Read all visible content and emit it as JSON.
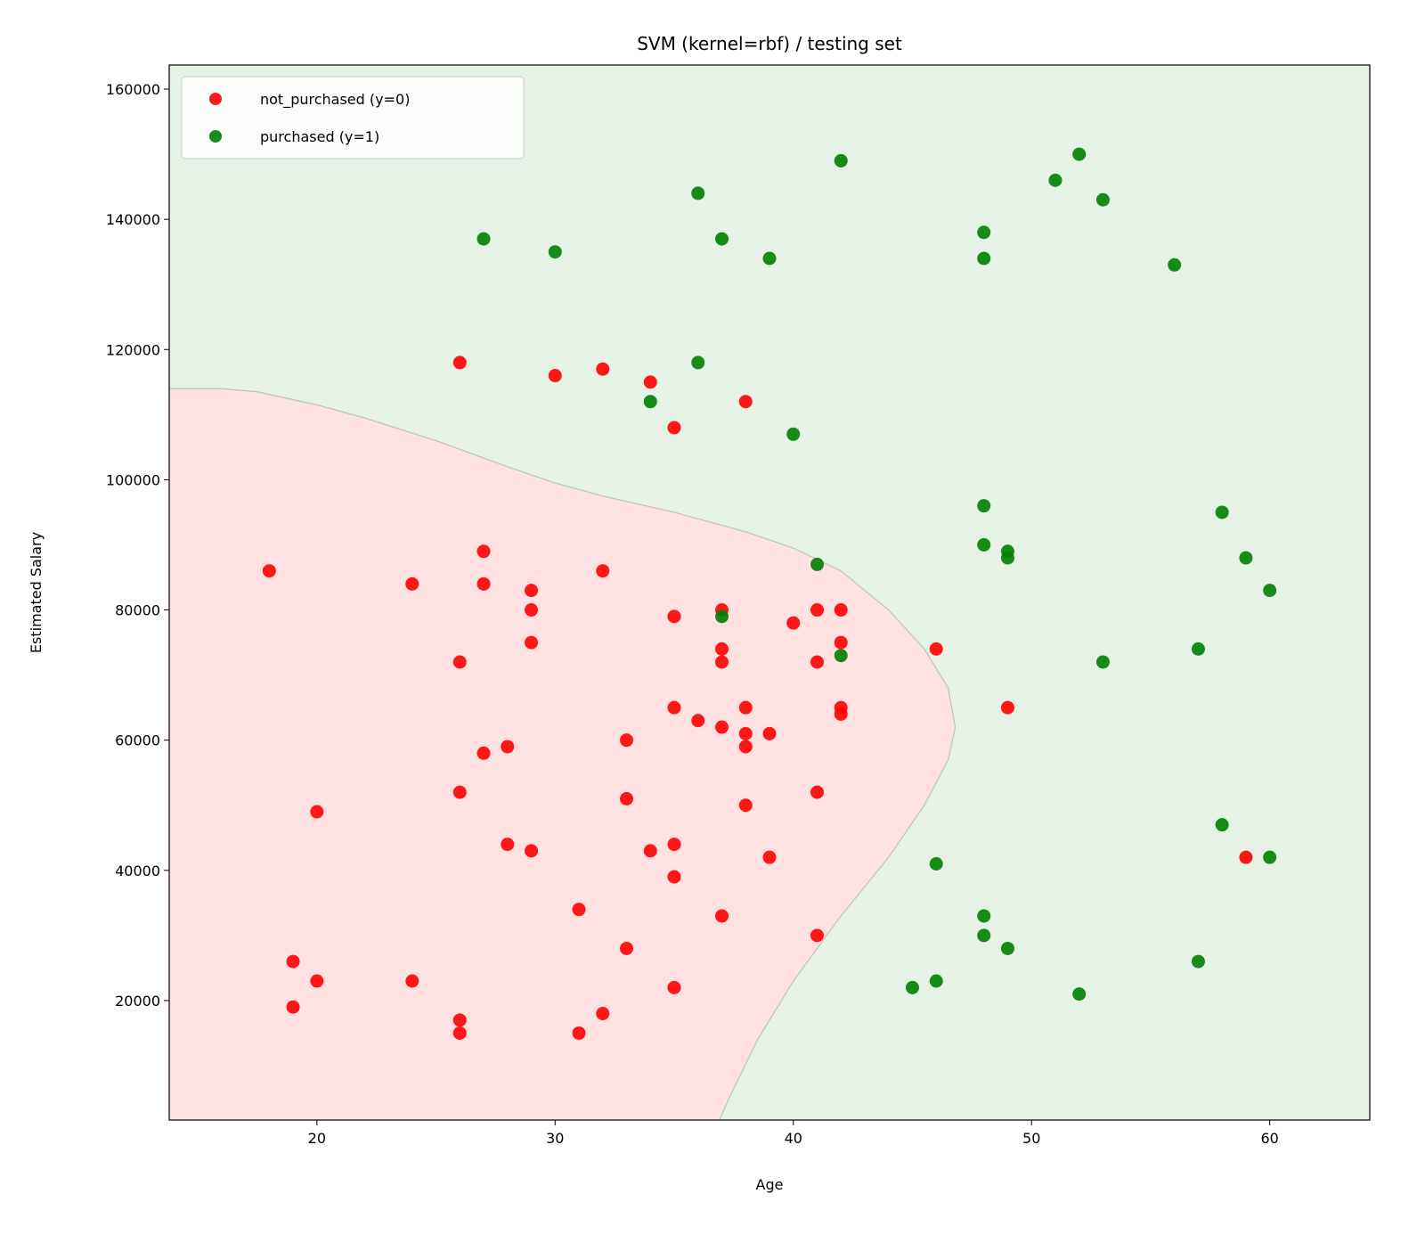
{
  "chart_data": {
    "type": "scatter",
    "title": "SVM (kernel=rbf) / testing set",
    "xlabel": "Age",
    "ylabel": "Estimated Salary",
    "xlim": [
      13.8,
      64.2
    ],
    "ylim": [
      1650,
      163700
    ],
    "xticks": [
      20,
      30,
      40,
      50,
      60
    ],
    "yticks": [
      20000,
      40000,
      60000,
      80000,
      100000,
      120000,
      140000,
      160000
    ],
    "grid": false,
    "legend_placement": "upper-left",
    "colors": {
      "class0": "#ff0000",
      "class1": "#008000",
      "region0": "#ffe1e1",
      "region1": "#e5f2e5"
    },
    "decision_boundary": [
      [
        13.8,
        114000
      ],
      [
        16,
        114000
      ],
      [
        17.5,
        113500
      ],
      [
        20,
        111500
      ],
      [
        22,
        109500
      ],
      [
        25,
        106000
      ],
      [
        28,
        102000
      ],
      [
        30,
        99500
      ],
      [
        32,
        97500
      ],
      [
        35,
        95000
      ],
      [
        38,
        92000
      ],
      [
        40,
        89500
      ],
      [
        42,
        86000
      ],
      [
        44,
        80000
      ],
      [
        45.5,
        74000
      ],
      [
        46.5,
        68000
      ],
      [
        46.8,
        62000
      ],
      [
        46.5,
        57000
      ],
      [
        45.5,
        50000
      ],
      [
        44,
        42000
      ],
      [
        42,
        33000
      ],
      [
        40,
        23000
      ],
      [
        38.5,
        14000
      ],
      [
        37.3,
        5000
      ],
      [
        36.9,
        1650
      ]
    ],
    "series": [
      {
        "name": "not_purchased (y=0)",
        "color": "#ff0000",
        "points": [
          [
            18,
            86000
          ],
          [
            19,
            26000
          ],
          [
            19,
            19000
          ],
          [
            20,
            49000
          ],
          [
            20,
            23000
          ],
          [
            24,
            84000
          ],
          [
            24,
            23000
          ],
          [
            26,
            118000
          ],
          [
            26,
            72000
          ],
          [
            26,
            52000
          ],
          [
            26,
            17000
          ],
          [
            26,
            15000
          ],
          [
            27,
            89000
          ],
          [
            27,
            84000
          ],
          [
            27,
            58000
          ],
          [
            28,
            59000
          ],
          [
            28,
            44000
          ],
          [
            29,
            83000
          ],
          [
            29,
            80000
          ],
          [
            29,
            75000
          ],
          [
            29,
            43000
          ],
          [
            30,
            116000
          ],
          [
            31,
            34000
          ],
          [
            31,
            15000
          ],
          [
            32,
            117000
          ],
          [
            32,
            86000
          ],
          [
            32,
            18000
          ],
          [
            33,
            60000
          ],
          [
            33,
            51000
          ],
          [
            33,
            28000
          ],
          [
            34,
            115000
          ],
          [
            34,
            43000
          ],
          [
            35,
            108000
          ],
          [
            35,
            79000
          ],
          [
            35,
            65000
          ],
          [
            35,
            44000
          ],
          [
            35,
            39000
          ],
          [
            35,
            22000
          ],
          [
            36,
            63000
          ],
          [
            37,
            80000
          ],
          [
            37,
            74000
          ],
          [
            37,
            72000
          ],
          [
            37,
            62000
          ],
          [
            37,
            33000
          ],
          [
            38,
            112000
          ],
          [
            38,
            65000
          ],
          [
            38,
            61000
          ],
          [
            38,
            59000
          ],
          [
            38,
            50000
          ],
          [
            39,
            61000
          ],
          [
            39,
            42000
          ],
          [
            40,
            78000
          ],
          [
            41,
            80000
          ],
          [
            41,
            72000
          ],
          [
            41,
            52000
          ],
          [
            41,
            30000
          ],
          [
            42,
            80000
          ],
          [
            42,
            75000
          ],
          [
            42,
            65000
          ],
          [
            42,
            64000
          ],
          [
            46,
            74000
          ],
          [
            49,
            65000
          ],
          [
            59,
            42000
          ]
        ]
      },
      {
        "name": "purchased (y=1)",
        "color": "#008000",
        "points": [
          [
            27,
            137000
          ],
          [
            30,
            135000
          ],
          [
            34,
            112000
          ],
          [
            36,
            144000
          ],
          [
            36,
            118000
          ],
          [
            37,
            137000
          ],
          [
            37,
            79000
          ],
          [
            39,
            134000
          ],
          [
            40,
            107000
          ],
          [
            41,
            87000
          ],
          [
            42,
            149000
          ],
          [
            42,
            73000
          ],
          [
            45,
            22000
          ],
          [
            46,
            41000
          ],
          [
            46,
            23000
          ],
          [
            48,
            138000
          ],
          [
            48,
            134000
          ],
          [
            48,
            96000
          ],
          [
            48,
            90000
          ],
          [
            48,
            33000
          ],
          [
            48,
            30000
          ],
          [
            49,
            89000
          ],
          [
            49,
            88000
          ],
          [
            49,
            28000
          ],
          [
            51,
            146000
          ],
          [
            52,
            150000
          ],
          [
            52,
            21000
          ],
          [
            53,
            143000
          ],
          [
            53,
            72000
          ],
          [
            56,
            133000
          ],
          [
            57,
            74000
          ],
          [
            57,
            26000
          ],
          [
            58,
            95000
          ],
          [
            58,
            47000
          ],
          [
            59,
            88000
          ],
          [
            60,
            83000
          ],
          [
            60,
            42000
          ]
        ]
      }
    ]
  }
}
